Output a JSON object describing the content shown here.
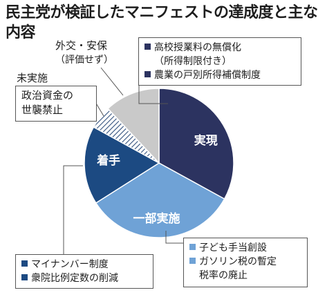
{
  "title": "民主党が検証したマニフェストの達成度と主な内容",
  "chart_data": {
    "type": "pie",
    "segments": [
      {
        "label": "実現",
        "value": 33,
        "color": "#2c3360",
        "pattern": "solid"
      },
      {
        "label": "一部実施",
        "value": 33,
        "color": "#6fa2d6",
        "pattern": "solid"
      },
      {
        "label": "着手",
        "value": 17,
        "color": "#1c4a82",
        "pattern": "solid"
      },
      {
        "label": "未実施",
        "value": 5,
        "color": "#7a8faa",
        "pattern": "hatch"
      },
      {
        "label": "外交・安保",
        "value": 12,
        "color": "#c9c9c9",
        "pattern": "solid"
      }
    ]
  },
  "callouts": {
    "gaiko": {
      "line1": "外交・安保",
      "line2": "（評価せず）"
    },
    "mijisshi": {
      "heading": "未実施",
      "items": [
        "政治資金の",
        "世襲禁止"
      ]
    },
    "jitsugen": {
      "items": [
        "高校授業料の無償化",
        "（所得制限付き）",
        "農業の戸別所得補償制度"
      ]
    },
    "chakushu": {
      "items": [
        "マイナンバー制度",
        "衆院比例定数の削減"
      ]
    },
    "ichibu": {
      "items": [
        "子ども手当創設",
        "ガソリン税の暫定",
        "税率の廃止"
      ]
    }
  }
}
